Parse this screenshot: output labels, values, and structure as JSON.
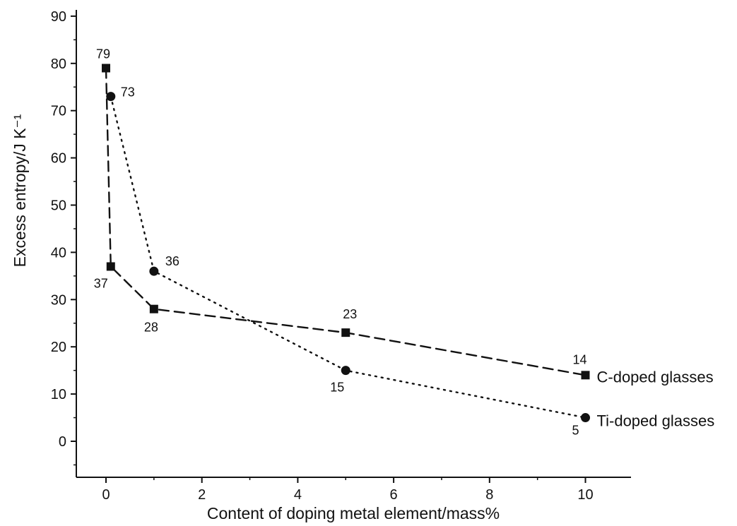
{
  "chart_data": {
    "type": "line",
    "xlabel": "Content of doping metal element/mass%",
    "ylabel": "Excess entropy/J K⁻¹",
    "xlim": [
      -0.6,
      11
    ],
    "ylim": [
      -5,
      90
    ],
    "xticks": [
      0,
      2,
      4,
      6,
      8,
      10
    ],
    "yticks": [
      0,
      10,
      20,
      30,
      40,
      50,
      60,
      70,
      80,
      90
    ],
    "grid": false,
    "series": [
      {
        "name": "C-doped glasses",
        "marker": "square",
        "line": "dashed",
        "color": "#111111",
        "x": [
          0,
          0.1,
          1,
          5,
          10
        ],
        "y": [
          79,
          37,
          28,
          23,
          14
        ],
        "labels": [
          "79",
          "37",
          "28",
          "23",
          "14"
        ]
      },
      {
        "name": "Ti-doped glasses",
        "marker": "circle",
        "line": "dotted",
        "color": "#111111",
        "x": [
          0.1,
          1,
          5,
          10
        ],
        "y": [
          73,
          36,
          15,
          5
        ],
        "labels": [
          "73",
          "36",
          "15",
          "5"
        ]
      }
    ]
  }
}
